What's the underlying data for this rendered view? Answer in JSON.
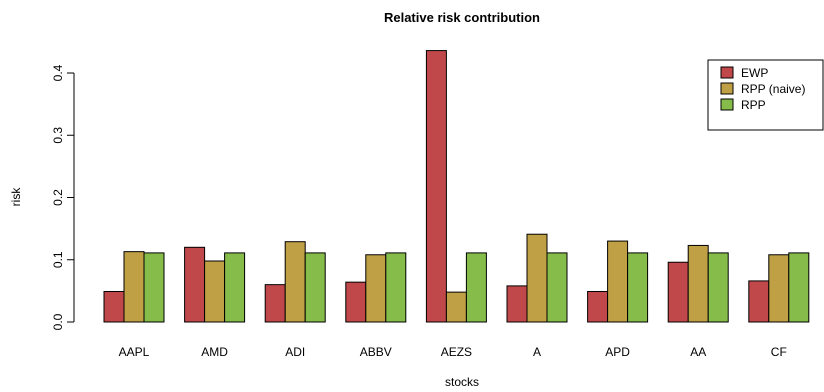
{
  "chart_data": {
    "type": "bar",
    "title": "Relative risk contribution",
    "xlabel": "stocks",
    "ylabel": "risk",
    "ylim": [
      0,
      0.45
    ],
    "yticks": [
      "0.0",
      "0.1",
      "0.2",
      "0.3",
      "0.4"
    ],
    "ytick_values": [
      0,
      0.1,
      0.2,
      0.3,
      0.4
    ],
    "grid": false,
    "legend_position": "top-right",
    "categories": [
      "AAPL",
      "AMD",
      "ADI",
      "ABBV",
      "AEZS",
      "A",
      "APD",
      "AA",
      "CF"
    ],
    "series": [
      {
        "name": "EWP",
        "color": "#c0484a",
        "values": [
          0.049,
          0.12,
          0.06,
          0.064,
          0.436,
          0.058,
          0.049,
          0.096,
          0.066
        ]
      },
      {
        "name": "RPP (naive)",
        "color": "#bfa045",
        "values": [
          0.113,
          0.098,
          0.129,
          0.108,
          0.048,
          0.141,
          0.13,
          0.123,
          0.108
        ]
      },
      {
        "name": "RPP",
        "color": "#86bc4a",
        "values": [
          0.111,
          0.111,
          0.111,
          0.111,
          0.111,
          0.111,
          0.111,
          0.111,
          0.111
        ]
      }
    ]
  }
}
